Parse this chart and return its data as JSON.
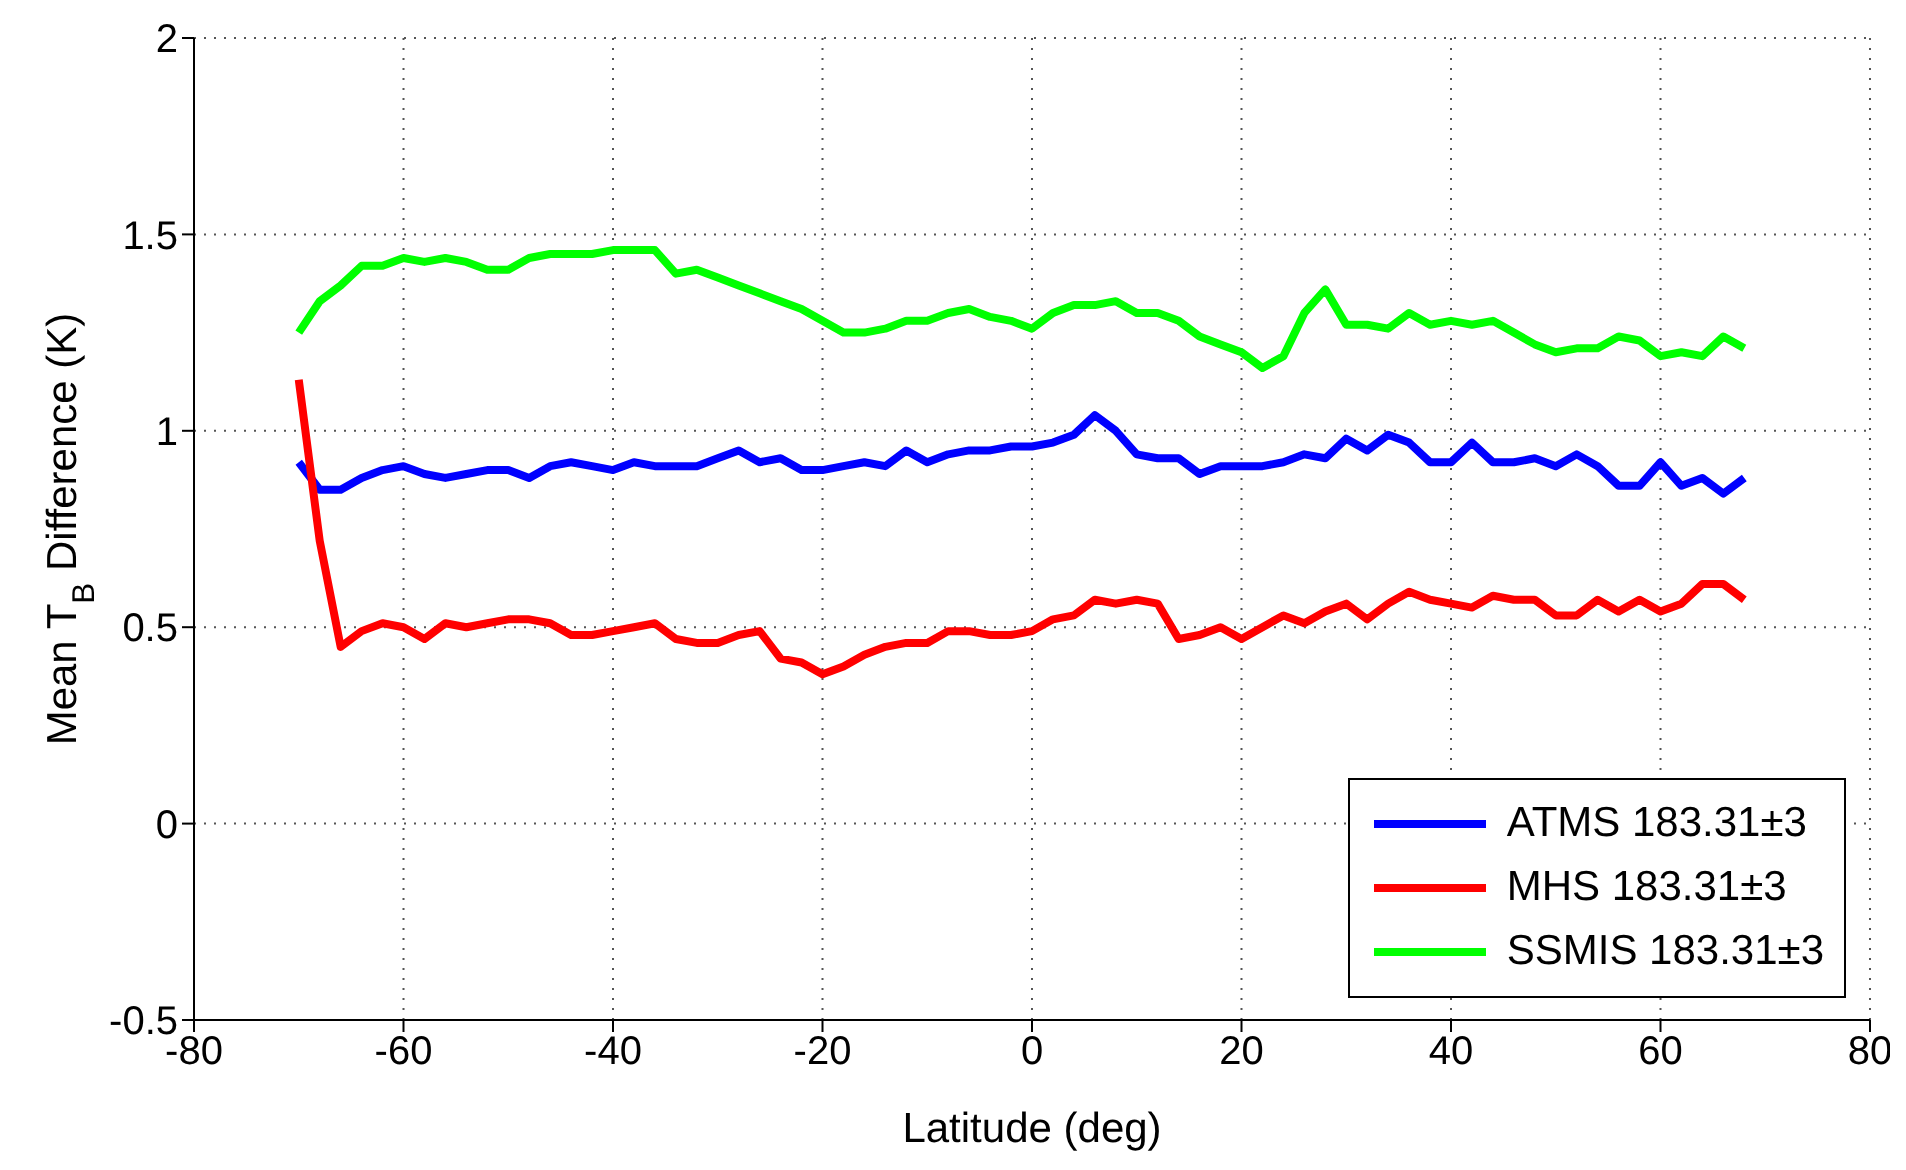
{
  "chart_data": {
    "type": "line",
    "xlabel": "Latitude (deg)",
    "ylabel": "Mean T$_{B}$ Difference (K)",
    "x": [
      -70,
      -68,
      -66,
      -64,
      -62,
      -60,
      -58,
      -56,
      -54,
      -52,
      -50,
      -48,
      -46,
      -44,
      -42,
      -40,
      -38,
      -36,
      -34,
      -32,
      -30,
      -28,
      -26,
      -24,
      -22,
      -20,
      -18,
      -16,
      -14,
      -12,
      -10,
      -8,
      -6,
      -4,
      -2,
      0,
      2,
      4,
      6,
      8,
      10,
      12,
      14,
      16,
      18,
      20,
      22,
      24,
      26,
      28,
      30,
      32,
      34,
      36,
      38,
      40,
      42,
      44,
      46,
      48,
      50,
      52,
      54,
      56,
      58,
      60,
      62,
      64,
      66,
      68
    ],
    "series": [
      {
        "name": "ATMS 183.31±3",
        "color": "#0000ff",
        "values": [
          0.92,
          0.85,
          0.85,
          0.88,
          0.9,
          0.91,
          0.89,
          0.88,
          0.89,
          0.9,
          0.9,
          0.88,
          0.91,
          0.92,
          0.91,
          0.9,
          0.92,
          0.91,
          0.91,
          0.91,
          0.93,
          0.95,
          0.92,
          0.93,
          0.9,
          0.9,
          0.91,
          0.92,
          0.91,
          0.95,
          0.92,
          0.94,
          0.95,
          0.95,
          0.96,
          0.96,
          0.97,
          0.99,
          1.04,
          1.0,
          0.94,
          0.93,
          0.93,
          0.89,
          0.91,
          0.91,
          0.91,
          0.92,
          0.94,
          0.93,
          0.98,
          0.95,
          0.99,
          0.97,
          0.92,
          0.92,
          0.97,
          0.92,
          0.92,
          0.93,
          0.91,
          0.94,
          0.91,
          0.86,
          0.86,
          0.92,
          0.86,
          0.88,
          0.84,
          0.88
        ]
      },
      {
        "name": "MHS 183.31±3",
        "color": "#ff0000",
        "values": [
          1.13,
          0.72,
          0.45,
          0.49,
          0.51,
          0.5,
          0.47,
          0.51,
          0.5,
          0.51,
          0.52,
          0.52,
          0.51,
          0.48,
          0.48,
          0.49,
          0.5,
          0.51,
          0.47,
          0.46,
          0.46,
          0.48,
          0.49,
          0.42,
          0.41,
          0.38,
          0.4,
          0.43,
          0.45,
          0.46,
          0.46,
          0.49,
          0.49,
          0.48,
          0.48,
          0.49,
          0.52,
          0.53,
          0.57,
          0.56,
          0.57,
          0.56,
          0.47,
          0.48,
          0.5,
          0.47,
          0.5,
          0.53,
          0.51,
          0.54,
          0.56,
          0.52,
          0.56,
          0.59,
          0.57,
          0.56,
          0.55,
          0.58,
          0.57,
          0.57,
          0.53,
          0.53,
          0.57,
          0.54,
          0.57,
          0.54,
          0.56,
          0.61,
          0.61,
          0.57
        ]
      },
      {
        "name": "SSMIS 183.31±3",
        "color": "#00ff00",
        "values": [
          1.25,
          1.33,
          1.37,
          1.42,
          1.42,
          1.44,
          1.43,
          1.44,
          1.43,
          1.41,
          1.41,
          1.44,
          1.45,
          1.45,
          1.45,
          1.46,
          1.46,
          1.46,
          1.4,
          1.41,
          1.39,
          1.37,
          1.35,
          1.33,
          1.31,
          1.28,
          1.25,
          1.25,
          1.26,
          1.28,
          1.28,
          1.3,
          1.31,
          1.29,
          1.28,
          1.26,
          1.3,
          1.32,
          1.32,
          1.33,
          1.3,
          1.3,
          1.28,
          1.24,
          1.22,
          1.2,
          1.16,
          1.19,
          1.3,
          1.36,
          1.27,
          1.27,
          1.26,
          1.3,
          1.27,
          1.28,
          1.27,
          1.28,
          1.25,
          1.22,
          1.2,
          1.21,
          1.21,
          1.24,
          1.23,
          1.19,
          1.2,
          1.19,
          1.24,
          1.21
        ]
      }
    ],
    "xlim": [
      -80,
      80
    ],
    "xticks": [
      -80,
      -60,
      -40,
      -20,
      0,
      20,
      40,
      60,
      80
    ],
    "ylim": [
      -0.5,
      2
    ],
    "yticks": [
      -0.5,
      0,
      0.5,
      1,
      1.5,
      2
    ],
    "grid": true,
    "legend": "bottom right",
    "marker": "none",
    "line_style": "solid"
  }
}
